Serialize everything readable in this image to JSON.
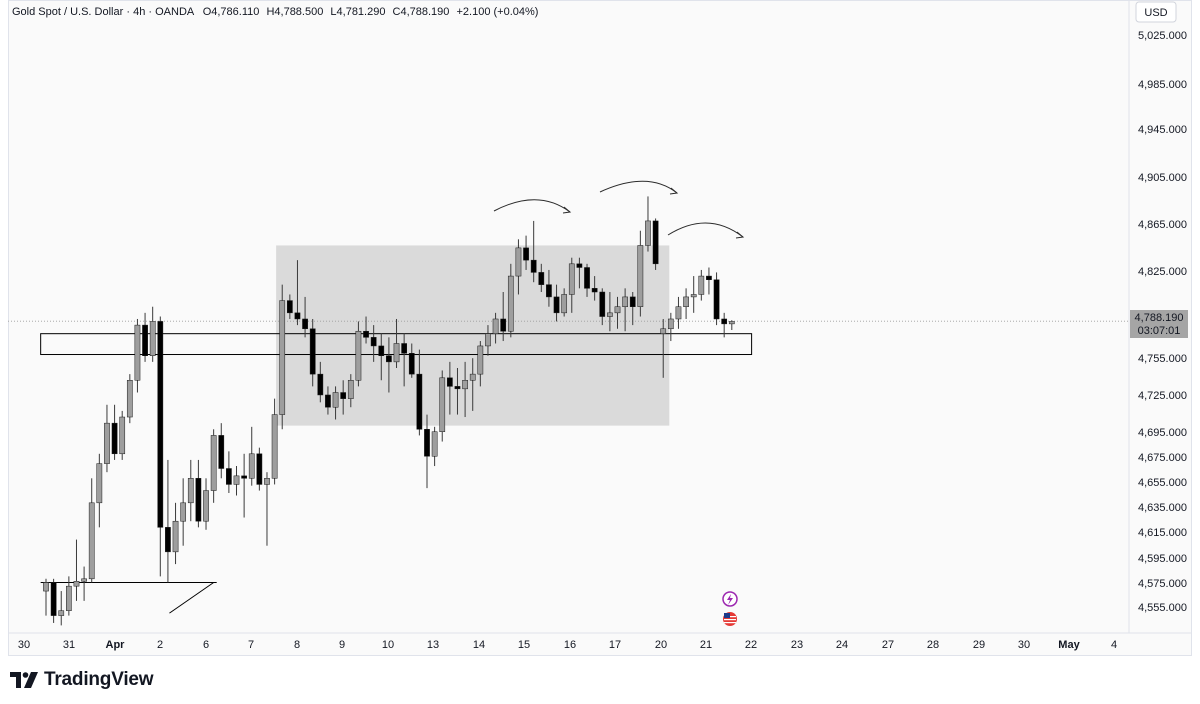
{
  "header": {
    "symbol": "Gold Spot / U.S. Dollar",
    "interval": "4h",
    "broker": "OANDA",
    "open": "O4,786.110",
    "high": "H4,788.500",
    "low": "L4,781.290",
    "close": "C4,788.190",
    "change": "+2.100 (+0.04%)"
  },
  "currency_label": "USD",
  "last_price_label": "4,788.190",
  "countdown_label": "03:07:01",
  "brand": {
    "name": "TradingView"
  },
  "colors": {
    "bull": "#9e9e9e",
    "bear": "#000000",
    "zone": "#d6d6d6",
    "wick": "#3a3a3a"
  },
  "icons": [
    "lightning-icon",
    "us-flag-icon"
  ],
  "chart_data": {
    "type": "candlestick",
    "y_ticks": [
      "5,025.000",
      "4,985.000",
      "4,945.000",
      "4,905.000",
      "4,865.000",
      "4,825.000",
      "4,755.000",
      "4,725.000",
      "4,695.000",
      "4,675.000",
      "4,655.000",
      "4,635.000",
      "4,615.000",
      "4,595.000",
      "4,575.000",
      "4,555.000"
    ],
    "x_ticks": [
      "30",
      "31",
      "Apr",
      "2",
      "6",
      "7",
      "8",
      "9",
      "10",
      "13",
      "14",
      "15",
      "16",
      "17",
      "20",
      "21",
      "22",
      "23",
      "24",
      "27",
      "28",
      "29",
      "30",
      "May",
      "4"
    ],
    "ylim": [
      4545,
      5040
    ],
    "grid": false,
    "candles": [
      {
        "i": 0,
        "o": 4568,
        "h": 4578,
        "l": 4548,
        "c": 4575
      },
      {
        "i": 1,
        "o": 4575,
        "h": 4578,
        "l": 4542,
        "c": 4548
      },
      {
        "i": 2,
        "o": 4548,
        "h": 4568,
        "l": 4540,
        "c": 4552
      },
      {
        "i": 3,
        "o": 4552,
        "h": 4580,
        "l": 4548,
        "c": 4572
      },
      {
        "i": 4,
        "o": 4572,
        "h": 4610,
        "l": 4560,
        "c": 4576
      },
      {
        "i": 5,
        "o": 4576,
        "h": 4588,
        "l": 4560,
        "c": 4578
      },
      {
        "i": 6,
        "o": 4578,
        "h": 4660,
        "l": 4575,
        "c": 4640
      },
      {
        "i": 7,
        "o": 4640,
        "h": 4680,
        "l": 4620,
        "c": 4672
      },
      {
        "i": 8,
        "o": 4672,
        "h": 4720,
        "l": 4665,
        "c": 4705
      },
      {
        "i": 9,
        "o": 4705,
        "h": 4720,
        "l": 4675,
        "c": 4680
      },
      {
        "i": 10,
        "o": 4680,
        "h": 4715,
        "l": 4675,
        "c": 4710
      },
      {
        "i": 11,
        "o": 4710,
        "h": 4745,
        "l": 4705,
        "c": 4740
      },
      {
        "i": 12,
        "o": 4740,
        "h": 4790,
        "l": 4730,
        "c": 4785
      },
      {
        "i": 13,
        "o": 4785,
        "h": 4795,
        "l": 4755,
        "c": 4760
      },
      {
        "i": 14,
        "o": 4760,
        "h": 4800,
        "l": 4755,
        "c": 4788
      },
      {
        "i": 15,
        "o": 4788,
        "h": 4792,
        "l": 4580,
        "c": 4620
      },
      {
        "i": 16,
        "o": 4620,
        "h": 4675,
        "l": 4575,
        "c": 4600
      },
      {
        "i": 17,
        "o": 4600,
        "h": 4640,
        "l": 4590,
        "c": 4625
      },
      {
        "i": 18,
        "o": 4625,
        "h": 4660,
        "l": 4605,
        "c": 4640
      },
      {
        "i": 19,
        "o": 4640,
        "h": 4675,
        "l": 4625,
        "c": 4660
      },
      {
        "i": 20,
        "o": 4660,
        "h": 4675,
        "l": 4620,
        "c": 4625
      },
      {
        "i": 21,
        "o": 4625,
        "h": 4660,
        "l": 4618,
        "c": 4650
      },
      {
        "i": 22,
        "o": 4650,
        "h": 4700,
        "l": 4640,
        "c": 4695
      },
      {
        "i": 23,
        "o": 4695,
        "h": 4705,
        "l": 4660,
        "c": 4668
      },
      {
        "i": 24,
        "o": 4668,
        "h": 4682,
        "l": 4648,
        "c": 4655
      },
      {
        "i": 25,
        "o": 4655,
        "h": 4670,
        "l": 4646,
        "c": 4662
      },
      {
        "i": 26,
        "o": 4662,
        "h": 4680,
        "l": 4628,
        "c": 4660
      },
      {
        "i": 27,
        "o": 4660,
        "h": 4702,
        "l": 4654,
        "c": 4680
      },
      {
        "i": 28,
        "o": 4680,
        "h": 4685,
        "l": 4650,
        "c": 4655
      },
      {
        "i": 29,
        "o": 4655,
        "h": 4665,
        "l": 4605,
        "c": 4660
      },
      {
        "i": 30,
        "o": 4660,
        "h": 4725,
        "l": 4655,
        "c": 4712
      },
      {
        "i": 31,
        "o": 4712,
        "h": 4818,
        "l": 4700,
        "c": 4805
      },
      {
        "i": 32,
        "o": 4805,
        "h": 4810,
        "l": 4790,
        "c": 4795
      },
      {
        "i": 33,
        "o": 4795,
        "h": 4838,
        "l": 4785,
        "c": 4790
      },
      {
        "i": 34,
        "o": 4790,
        "h": 4808,
        "l": 4775,
        "c": 4782
      },
      {
        "i": 35,
        "o": 4782,
        "h": 4790,
        "l": 4735,
        "c": 4745
      },
      {
        "i": 36,
        "o": 4745,
        "h": 4755,
        "l": 4722,
        "c": 4728
      },
      {
        "i": 37,
        "o": 4728,
        "h": 4735,
        "l": 4712,
        "c": 4718
      },
      {
        "i": 38,
        "o": 4718,
        "h": 4735,
        "l": 4708,
        "c": 4730
      },
      {
        "i": 39,
        "o": 4730,
        "h": 4740,
        "l": 4712,
        "c": 4725
      },
      {
        "i": 40,
        "o": 4725,
        "h": 4745,
        "l": 4718,
        "c": 4740
      },
      {
        "i": 41,
        "o": 4740,
        "h": 4788,
        "l": 4735,
        "c": 4780
      },
      {
        "i": 42,
        "o": 4780,
        "h": 4792,
        "l": 4770,
        "c": 4775
      },
      {
        "i": 43,
        "o": 4775,
        "h": 4785,
        "l": 4755,
        "c": 4768
      },
      {
        "i": 44,
        "o": 4768,
        "h": 4778,
        "l": 4740,
        "c": 4760
      },
      {
        "i": 45,
        "o": 4760,
        "h": 4775,
        "l": 4730,
        "c": 4755
      },
      {
        "i": 46,
        "o": 4755,
        "h": 4790,
        "l": 4750,
        "c": 4770
      },
      {
        "i": 47,
        "o": 4770,
        "h": 4778,
        "l": 4735,
        "c": 4762
      },
      {
        "i": 48,
        "o": 4762,
        "h": 4770,
        "l": 4742,
        "c": 4745
      },
      {
        "i": 49,
        "o": 4745,
        "h": 4765,
        "l": 4695,
        "c": 4700
      },
      {
        "i": 50,
        "o": 4700,
        "h": 4712,
        "l": 4652,
        "c": 4678
      },
      {
        "i": 51,
        "o": 4678,
        "h": 4702,
        "l": 4670,
        "c": 4698
      },
      {
        "i": 52,
        "o": 4698,
        "h": 4748,
        "l": 4690,
        "c": 4742
      },
      {
        "i": 53,
        "o": 4742,
        "h": 4755,
        "l": 4712,
        "c": 4735
      },
      {
        "i": 54,
        "o": 4735,
        "h": 4750,
        "l": 4712,
        "c": 4733
      },
      {
        "i": 55,
        "o": 4733,
        "h": 4755,
        "l": 4710,
        "c": 4740
      },
      {
        "i": 56,
        "o": 4740,
        "h": 4758,
        "l": 4715,
        "c": 4745
      },
      {
        "i": 57,
        "o": 4745,
        "h": 4772,
        "l": 4735,
        "c": 4768
      },
      {
        "i": 58,
        "o": 4768,
        "h": 4785,
        "l": 4760,
        "c": 4778
      },
      {
        "i": 59,
        "o": 4778,
        "h": 4795,
        "l": 4770,
        "c": 4790
      },
      {
        "i": 60,
        "o": 4790,
        "h": 4812,
        "l": 4772,
        "c": 4780
      },
      {
        "i": 61,
        "o": 4780,
        "h": 4835,
        "l": 4775,
        "c": 4825
      },
      {
        "i": 62,
        "o": 4825,
        "h": 4855,
        "l": 4810,
        "c": 4848
      },
      {
        "i": 63,
        "o": 4848,
        "h": 4858,
        "l": 4830,
        "c": 4838
      },
      {
        "i": 64,
        "o": 4838,
        "h": 4870,
        "l": 4820,
        "c": 4828
      },
      {
        "i": 65,
        "o": 4828,
        "h": 4835,
        "l": 4812,
        "c": 4818
      },
      {
        "i": 66,
        "o": 4818,
        "h": 4830,
        "l": 4800,
        "c": 4808
      },
      {
        "i": 67,
        "o": 4808,
        "h": 4818,
        "l": 4788,
        "c": 4795
      },
      {
        "i": 68,
        "o": 4795,
        "h": 4815,
        "l": 4792,
        "c": 4810
      },
      {
        "i": 69,
        "o": 4810,
        "h": 4840,
        "l": 4795,
        "c": 4835
      },
      {
        "i": 70,
        "o": 4835,
        "h": 4840,
        "l": 4815,
        "c": 4832
      },
      {
        "i": 71,
        "o": 4832,
        "h": 4835,
        "l": 4808,
        "c": 4815
      },
      {
        "i": 72,
        "o": 4815,
        "h": 4825,
        "l": 4805,
        "c": 4812
      },
      {
        "i": 73,
        "o": 4812,
        "h": 4815,
        "l": 4785,
        "c": 4792
      },
      {
        "i": 74,
        "o": 4792,
        "h": 4812,
        "l": 4780,
        "c": 4795
      },
      {
        "i": 75,
        "o": 4795,
        "h": 4808,
        "l": 4782,
        "c": 4800
      },
      {
        "i": 76,
        "o": 4800,
        "h": 4815,
        "l": 4780,
        "c": 4808
      },
      {
        "i": 77,
        "o": 4808,
        "h": 4812,
        "l": 4785,
        "c": 4800
      },
      {
        "i": 78,
        "o": 4800,
        "h": 4862,
        "l": 4792,
        "c": 4850
      },
      {
        "i": 79,
        "o": 4850,
        "h": 4890,
        "l": 4845,
        "c": 4870
      },
      {
        "i": 80,
        "o": 4870,
        "h": 4872,
        "l": 4830,
        "c": 4835
      },
      {
        "i": 81,
        "o": 4778,
        "h": 4790,
        "l": 4742,
        "c": 4782
      },
      {
        "i": 82,
        "o": 4782,
        "h": 4795,
        "l": 4772,
        "c": 4790
      },
      {
        "i": 83,
        "o": 4790,
        "h": 4808,
        "l": 4782,
        "c": 4800
      },
      {
        "i": 84,
        "o": 4800,
        "h": 4815,
        "l": 4790,
        "c": 4808
      },
      {
        "i": 85,
        "o": 4808,
        "h": 4825,
        "l": 4795,
        "c": 4810
      },
      {
        "i": 86,
        "o": 4810,
        "h": 4830,
        "l": 4805,
        "c": 4825
      },
      {
        "i": 87,
        "o": 4825,
        "h": 4832,
        "l": 4810,
        "c": 4822
      },
      {
        "i": 88,
        "o": 4822,
        "h": 4828,
        "l": 4785,
        "c": 4790
      },
      {
        "i": 89,
        "o": 4790,
        "h": 4795,
        "l": 4775,
        "c": 4786
      },
      {
        "i": 90,
        "o": 4786,
        "h": 4789,
        "l": 4781,
        "c": 4788
      }
    ],
    "zones": [
      {
        "name": "range-box",
        "start_i": 30.2,
        "end_i": 81.8,
        "top": 4850,
        "bottom": 4703
      },
      {
        "name": "support-zone",
        "start_i": -0.7,
        "end_i": 92.6,
        "top": 4778,
        "bottom": 4761
      }
    ],
    "trend_lines": [
      {
        "name": "base-line",
        "i1": -0.7,
        "p1": 4575,
        "i2": 22.4,
        "p2": 4575
      },
      {
        "name": "trend-diagonal",
        "i1": 16.2,
        "p1": 4550,
        "i2": 22.0,
        "p2": 4575
      }
    ],
    "last_price": 4788.19
  }
}
